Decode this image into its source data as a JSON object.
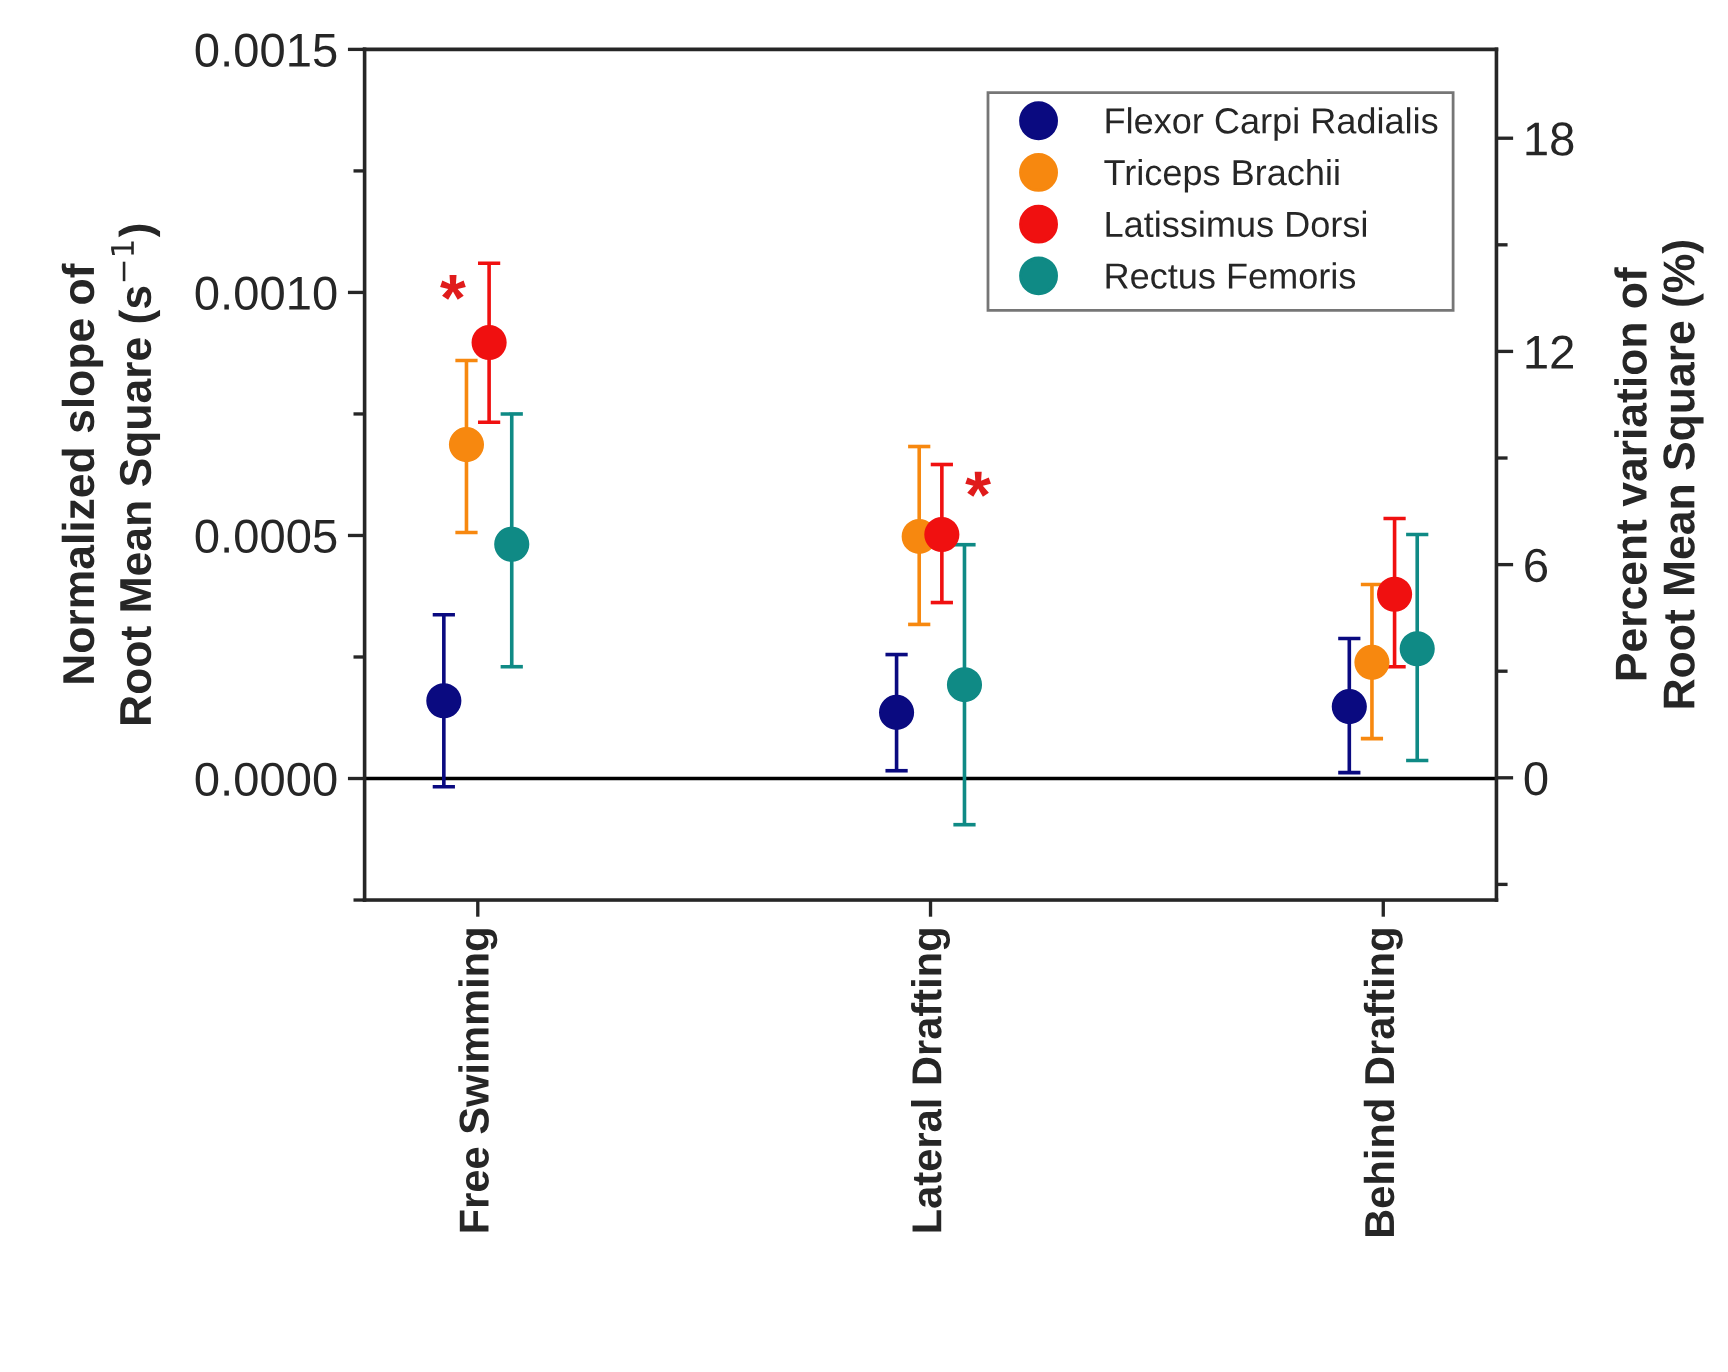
{
  "chart_data": {
    "type": "scatter",
    "categories": [
      "Free Swimming",
      "Lateral Drafting",
      "Behind Drafting"
    ],
    "ylabel": "Normalized slope of\nRoot Mean Square (s$^{−1}$)",
    "y2label": "Percent variation of\nRoot Mean Square (%)",
    "ylim": [
      -0.00025,
      0.0015
    ],
    "yticks": [
      {
        "value": -0.00025,
        "label": null
      },
      {
        "value": 0,
        "label": "0.0000"
      },
      {
        "value": 0.00025,
        "label": null
      },
      {
        "value": 0.0005,
        "label": "0.0005"
      },
      {
        "value": 0.00075,
        "label": null
      },
      {
        "value": 0.001,
        "label": "0.0010"
      },
      {
        "value": 0.00125,
        "label": null
      },
      {
        "value": 0.0015,
        "label": "0.0015"
      }
    ],
    "y2lim": [
      -3.44,
      20.5
    ],
    "y2ticks": [
      {
        "value": -3,
        "label": null
      },
      0,
      {
        "value": 3,
        "label": null
      },
      6,
      {
        "value": 9,
        "label": null
      },
      12,
      {
        "value": 15,
        "label": null
      },
      18
    ],
    "marker": "circle",
    "legend": "top right",
    "grid": false,
    "ref_lines": [
      {
        "axis": "y",
        "value": 0,
        "color": "#000000"
      }
    ],
    "annotations": [
      "*",
      "*"
    ],
    "series": [
      {
        "name": "Flexor Carpi Radialis",
        "color": "#0a0a80",
        "values": [
          0.00016,
          0.000136,
          0.000148
        ],
        "errors": [
          [
            -1.7e-05,
            0.000337
          ],
          [
            1.6e-05,
            0.000255
          ],
          [
            1.2e-05,
            0.000288
          ]
        ]
      },
      {
        "name": "Triceps Brachii",
        "color": "#f7880f",
        "values": [
          0.000687,
          0.000498,
          0.000239
        ],
        "errors": [
          [
            0.000506,
            0.00086
          ],
          [
            0.000317,
            0.000683
          ],
          [
            8.2e-05,
            0.000399
          ]
        ]
      },
      {
        "name": "Latissimus Dorsi",
        "color": "#f01010",
        "values": [
          0.000897,
          0.000502,
          0.000379
        ],
        "errors": [
          [
            0.000733,
            0.00106
          ],
          [
            0.000362,
            0.000646
          ],
          [
            0.00023,
            0.000535
          ]
        ]
      },
      {
        "name": "Rectus Femoris",
        "color": "#0f8a85",
        "values": [
          0.000482,
          0.000193,
          0.000267
        ],
        "errors": [
          [
            0.00023,
            0.00075
          ],
          [
            -9.5e-05,
            0.000481
          ],
          [
            3.7e-05,
            0.000502
          ]
        ]
      }
    ]
  }
}
